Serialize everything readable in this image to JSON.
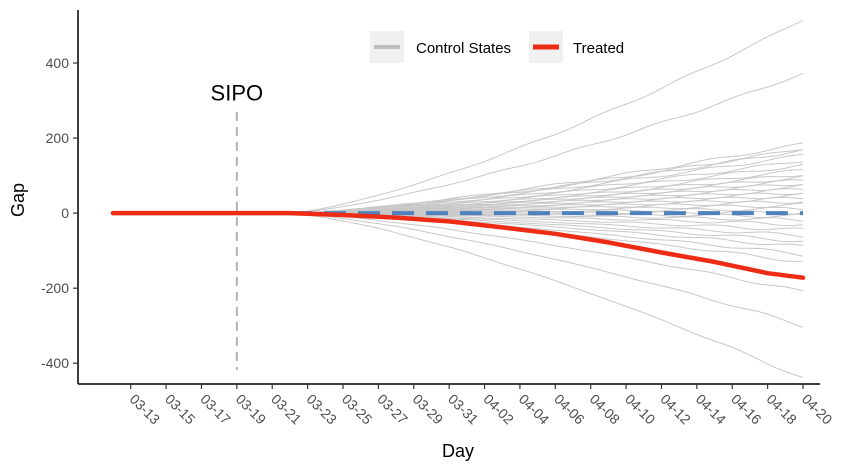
{
  "chart_data": {
    "type": "line",
    "title": "",
    "xlabel": "Day",
    "ylabel": "Gap",
    "x_ticks": [
      "03-13",
      "03-15",
      "03-17",
      "03-19",
      "03-21",
      "03-23",
      "03-25",
      "03-27",
      "03-29",
      "03-31",
      "04-02",
      "04-04",
      "04-06",
      "04-08",
      "04-10",
      "04-12",
      "04-14",
      "04-16",
      "04-18",
      "04-20"
    ],
    "x_range": [
      "03-12",
      "04-20"
    ],
    "y_ticks": [
      -400,
      -200,
      0,
      200,
      400
    ],
    "ylim": [
      -450,
      520
    ],
    "grid": false,
    "legend": {
      "position": "top-center",
      "entries": [
        {
          "label": "Control States",
          "color": "#bdbdbd"
        },
        {
          "label": "Treated",
          "color": "#ee2c16"
        }
      ]
    },
    "annotations": [
      {
        "text": "SIPO",
        "x": "03-19",
        "type": "vertical-dashed-line",
        "color": "#b3b3b3"
      }
    ],
    "reference_line": {
      "y": 0,
      "color": "#4f81bd",
      "style": "dashed"
    },
    "colors": {
      "control": "#c8c8c8",
      "treated": "#ee2c16",
      "reference": "#4f81bd",
      "axis": "#000000"
    },
    "series": [
      {
        "name": "Treated",
        "x": [
          "03-12",
          "03-19",
          "03-22",
          "03-25",
          "03-28",
          "03-31",
          "04-03",
          "04-06",
          "04-09",
          "04-12",
          "04-15",
          "04-18",
          "04-20"
        ],
        "values": [
          0,
          0,
          0,
          -5,
          -12,
          -22,
          -38,
          -55,
          -78,
          -105,
          -130,
          -160,
          -172
        ]
      }
    ],
    "control_endpoints_0420": [
      515,
      372,
      185,
      172,
      168,
      155,
      140,
      128,
      115,
      104,
      96,
      88,
      80,
      72,
      64,
      56,
      48,
      40,
      32,
      22,
      12,
      2,
      -8,
      -18,
      -30,
      -45,
      -60,
      -75,
      -90,
      -110,
      -130,
      -210,
      -300,
      -440
    ]
  }
}
